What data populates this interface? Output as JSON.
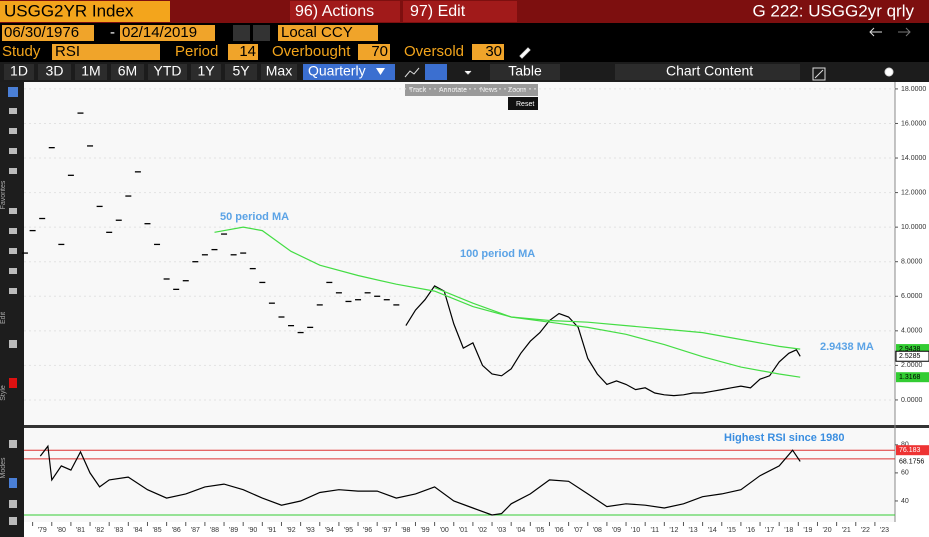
{
  "toolbar": {
    "security": "USGG2YR Index",
    "actions": "96) Actions",
    "edit": "97) Edit",
    "page_title": "G 222: USGG2yr qrly"
  },
  "range": {
    "start": "06/30/1976",
    "dash": "-",
    "end": "02/14/2019",
    "currency": "Local CCY"
  },
  "study": {
    "label": "Study",
    "name": "RSI",
    "period_label": "Period",
    "period": 14,
    "overbought_label": "Overbought",
    "overbought": 70,
    "oversold_label": "Oversold",
    "oversold": 30
  },
  "periods": [
    "1D",
    "3D",
    "1M",
    "6M",
    "YTD",
    "1Y",
    "5Y",
    "Max"
  ],
  "frequency": "Quarterly",
  "table": "Table",
  "chart_content": "Chart Content",
  "popup": {
    "items": [
      "Track",
      "Annotate",
      "News",
      "Zoom"
    ],
    "reset": "Reset"
  },
  "side_labels": [
    "Favorites",
    "Edit",
    "Style",
    "Modes"
  ],
  "chart_data": [
    {
      "type": "line",
      "xlim": [
        1978.55,
        2024.05
      ],
      "ylim": [
        -1.45,
        18.4
      ],
      "yticks": [
        {
          "value": 0,
          "label": "0.0000"
        },
        {
          "value": 2,
          "label": "2.0000"
        },
        {
          "value": 4,
          "label": "4.0000"
        },
        {
          "value": 6,
          "label": "6.0000"
        },
        {
          "value": 8,
          "label": "8.0000"
        },
        {
          "value": 10,
          "label": "10.0000"
        },
        {
          "value": 12,
          "label": "12.0000"
        },
        {
          "value": 14,
          "label": "14.0000"
        },
        {
          "value": 16,
          "label": "16.0000"
        },
        {
          "value": 18,
          "label": "18.0000"
        }
      ],
      "grid": true,
      "series": [
        {
          "style": "dash",
          "color": "#000000",
          "x": [
            1978.6,
            1979,
            1979.5,
            1980,
            1980.5,
            1981,
            1981.5,
            1982,
            1982.5,
            1983,
            1983.5,
            1984,
            1984.5,
            1985,
            1985.5,
            1986,
            1986.5,
            1987,
            1987.5,
            1988,
            1988.5,
            1989,
            1989.5,
            1990,
            1990.5,
            1991,
            1991.5,
            1992,
            1992.5,
            1993,
            1993.5,
            1994,
            1994.5,
            1995,
            1995.5,
            1996,
            1996.5,
            1997,
            1997.5,
            1998
          ],
          "values": [
            8.5,
            9.8,
            10.5,
            14.6,
            9,
            13,
            16.6,
            14.7,
            11.2,
            9.7,
            10.4,
            11.8,
            13.2,
            10.2,
            9,
            7,
            6.4,
            6.9,
            8,
            8.4,
            8.7,
            9.6,
            8.4,
            8.5,
            7.6,
            6.8,
            5.6,
            4.8,
            4.3,
            3.9,
            4.2,
            5.5,
            6.8,
            6.2,
            5.7,
            5.8,
            6.2,
            6,
            5.8,
            5.5
          ]
        },
        {
          "style": "line",
          "color": "#000000",
          "x": [
            1998.5,
            1999,
            1999.5,
            2000,
            2000.5,
            2001,
            2001.5,
            2002,
            2002.5,
            2003,
            2003.5,
            2004,
            2004.5,
            2005,
            2005.5,
            2006,
            2006.5,
            2007,
            2007.5,
            2008,
            2008.5,
            2009,
            2009.5,
            2010,
            2010.5,
            2011,
            2011.5,
            2012,
            2012.5,
            2013,
            2013.5,
            2014,
            2014.5,
            2015,
            2015.5,
            2016,
            2016.5,
            2017,
            2017.5,
            2018,
            2018.5,
            2018.9,
            2019.1
          ],
          "values": [
            4.3,
            5.2,
            5.8,
            6.6,
            6.3,
            4.4,
            3,
            3.3,
            2,
            1.5,
            1.4,
            1.8,
            2.7,
            3.4,
            3.9,
            4.6,
            5,
            4.8,
            4.2,
            2.4,
            1.5,
            0.9,
            1.1,
            0.9,
            0.6,
            0.7,
            0.4,
            0.3,
            0.25,
            0.3,
            0.4,
            0.4,
            0.5,
            0.6,
            0.7,
            0.8,
            0.7,
            1.2,
            1.4,
            2.2,
            2.7,
            2.9,
            2.5285
          ]
        },
        {
          "name": "50 period MA",
          "style": "line",
          "color": "#44dd44",
          "x": [
            1988.5,
            1990,
            1991,
            1992.5,
            1994,
            1996,
            1998,
            2000,
            2002,
            2004,
            2006,
            2008,
            2010,
            2012,
            2014,
            2016,
            2018,
            2019.1
          ],
          "values": [
            9.7,
            10,
            9.8,
            8.6,
            7.8,
            7.2,
            6.7,
            6.3,
            5.4,
            4.8,
            4.6,
            4.5,
            4.3,
            4.1,
            3.9,
            3.5,
            3.1,
            2.9438
          ]
        },
        {
          "name": "100 period MA",
          "style": "line",
          "color": "#44dd44",
          "x": [
            2000,
            2002,
            2004,
            2006,
            2008,
            2010,
            2012,
            2014,
            2016,
            2018,
            2019.1
          ],
          "values": [
            6.5,
            5.6,
            4.8,
            4.5,
            4.2,
            3.8,
            3.2,
            2.5,
            1.9,
            1.5,
            1.3168
          ]
        }
      ],
      "annotations": [
        "2.9438 MA"
      ]
    },
    {
      "type": "line",
      "xlim": [
        1978.55,
        2024.05
      ],
      "ylim": [
        25,
        92
      ],
      "yticks": [
        40,
        60,
        80
      ],
      "xticks": [
        {
          "value": 1979,
          "label": "'79"
        },
        {
          "value": 1980,
          "label": "'80"
        },
        {
          "value": 1981,
          "label": "'81"
        },
        {
          "value": 1982,
          "label": "'82"
        },
        {
          "value": 1983,
          "label": "'83"
        },
        {
          "value": 1984,
          "label": "'84"
        },
        {
          "value": 1985,
          "label": "'85"
        },
        {
          "value": 1986,
          "label": "'86"
        },
        {
          "value": 1987,
          "label": "'87"
        },
        {
          "value": 1988,
          "label": "'88"
        },
        {
          "value": 1989,
          "label": "'89"
        },
        {
          "value": 1990,
          "label": "'90"
        },
        {
          "value": 1991,
          "label": "'91"
        },
        {
          "value": 1992,
          "label": "'92"
        },
        {
          "value": 1993,
          "label": "'93"
        },
        {
          "value": 1994,
          "label": "'94"
        },
        {
          "value": 1995,
          "label": "'95"
        },
        {
          "value": 1996,
          "label": "'96"
        },
        {
          "value": 1997,
          "label": "'97"
        },
        {
          "value": 1998,
          "label": "'98"
        },
        {
          "value": 1999,
          "label": "'99"
        },
        {
          "value": 2000,
          "label": "'00"
        },
        {
          "value": 2001,
          "label": "'01"
        },
        {
          "value": 2002,
          "label": "'02"
        },
        {
          "value": 2003,
          "label": "'03"
        },
        {
          "value": 2004,
          "label": "'04"
        },
        {
          "value": 2005,
          "label": "'05"
        },
        {
          "value": 2006,
          "label": "'06"
        },
        {
          "value": 2007,
          "label": "'07"
        },
        {
          "value": 2008,
          "label": "'08"
        },
        {
          "value": 2009,
          "label": "'09"
        },
        {
          "value": 2010,
          "label": "'10"
        },
        {
          "value": 2011,
          "label": "'11"
        },
        {
          "value": 2012,
          "label": "'12"
        },
        {
          "value": 2013,
          "label": "'13"
        },
        {
          "value": 2014,
          "label": "'14"
        },
        {
          "value": 2015,
          "label": "'15"
        },
        {
          "value": 2016,
          "label": "'16"
        },
        {
          "value": 2017,
          "label": "'17"
        },
        {
          "value": 2018,
          "label": "'18"
        },
        {
          "value": 2019,
          "label": "'19"
        },
        {
          "value": 2020,
          "label": "'20"
        },
        {
          "value": 2021,
          "label": "'21"
        },
        {
          "value": 2022,
          "label": "'22"
        },
        {
          "value": 2023,
          "label": "'23"
        }
      ],
      "series": [
        {
          "color": "#000000",
          "x": [
            1979.4,
            1979.8,
            1980,
            1980.5,
            1981,
            1981.5,
            1982,
            1982.5,
            1983,
            1984,
            1985,
            1986,
            1987,
            1988,
            1989,
            1990,
            1991,
            1992,
            1993,
            1994,
            1995,
            1996,
            1997,
            1998,
            1999,
            2000,
            2001,
            2002,
            2003,
            2003.5,
            2004,
            2005,
            2006,
            2007,
            2008,
            2009,
            2010,
            2011,
            2012,
            2013,
            2014,
            2015,
            2016,
            2017,
            2018,
            2018.7,
            2019.1
          ],
          "values": [
            72,
            79,
            55,
            65,
            62,
            75,
            60,
            50,
            55,
            57,
            48,
            42,
            45,
            50,
            52,
            48,
            42,
            37,
            40,
            46,
            48,
            47,
            47,
            42,
            45,
            50,
            40,
            35,
            30,
            31,
            38,
            45,
            55,
            54,
            45,
            36,
            38,
            37,
            35,
            38,
            43,
            45,
            48,
            58,
            65,
            76.183,
            68.1756
          ]
        }
      ],
      "annotations": [
        "Highest RSI since 1980"
      ]
    }
  ]
}
